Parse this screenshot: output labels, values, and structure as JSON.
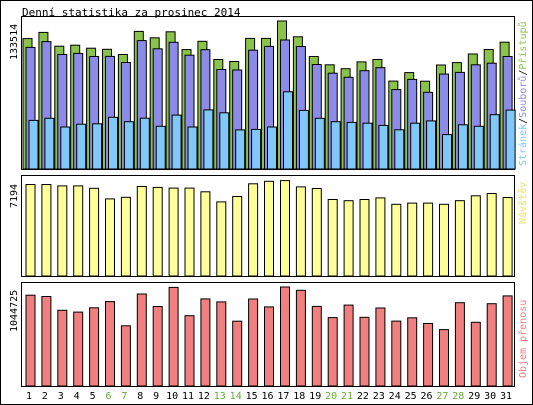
{
  "title": "Denní statistika za prosinec 2014",
  "colors": {
    "hits": "#8bc34a",
    "files": "#8c8ce8",
    "pages": "#7fc8f8",
    "visits": "#ffff99",
    "kbytes": "#f07f7f",
    "weekday_label": "#000000",
    "weekend_label": "#66aa33",
    "border": "#000000"
  },
  "chart_data": [
    {
      "type": "bar",
      "panel": "top",
      "ymax_label": "133514",
      "ymax": 133514,
      "legend_labels": [
        "Stránek",
        "Souborů",
        "Přístupů"
      ],
      "legend_separators": [
        "/",
        "/"
      ],
      "categories": [
        "1",
        "2",
        "3",
        "4",
        "5",
        "6",
        "7",
        "8",
        "9",
        "10",
        "11",
        "12",
        "13",
        "14",
        "15",
        "16",
        "17",
        "18",
        "19",
        "20",
        "21",
        "22",
        "23",
        "24",
        "25",
        "26",
        "27",
        "28",
        "29",
        "30",
        "31"
      ],
      "series": [
        {
          "name": "Přístupů",
          "color_key": "hits",
          "values": [
            117600,
            123200,
            110800,
            111700,
            109000,
            108000,
            103300,
            124100,
            118400,
            123800,
            107700,
            115200,
            98800,
            97000,
            117800,
            117800,
            133500,
            119300,
            101500,
            94000,
            90500,
            96600,
            98800,
            79300,
            87000,
            79200,
            93800,
            96000,
            103700,
            107800,
            114400
          ]
        },
        {
          "name": "Souborů",
          "color_key": "files",
          "values": [
            109700,
            114900,
            103300,
            104300,
            101500,
            101600,
            96100,
            115800,
            108400,
            114300,
            102700,
            107600,
            89800,
            89300,
            107200,
            110600,
            116400,
            110500,
            94300,
            86400,
            82700,
            88700,
            91400,
            71600,
            80800,
            69200,
            85600,
            87100,
            94000,
            95400,
            101500
          ]
        },
        {
          "name": "Stránek",
          "color_key": "pages",
          "values": [
            43800,
            45700,
            37900,
            40400,
            40800,
            46600,
            42700,
            45800,
            38500,
            48600,
            37900,
            53300,
            50700,
            35300,
            35700,
            37900,
            69600,
            52900,
            45700,
            42700,
            42000,
            41300,
            39300,
            35400,
            41300,
            43400,
            31000,
            39900,
            38500,
            49000,
            53100
          ]
        }
      ]
    },
    {
      "type": "bar",
      "panel": "middle",
      "ymax_label": "7194",
      "ymax": 7194,
      "legend_labels": [
        "Návštěv"
      ],
      "categories": [
        "1",
        "2",
        "3",
        "4",
        "5",
        "6",
        "7",
        "8",
        "9",
        "10",
        "11",
        "12",
        "13",
        "14",
        "15",
        "16",
        "17",
        "18",
        "19",
        "20",
        "21",
        "22",
        "23",
        "24",
        "25",
        "26",
        "27",
        "28",
        "29",
        "30",
        "31"
      ],
      "series": [
        {
          "name": "Návštěv",
          "color_key": "visits",
          "values": [
            6860,
            6860,
            6750,
            6750,
            6570,
            5780,
            5900,
            6710,
            6640,
            6590,
            6590,
            6310,
            5550,
            5960,
            6910,
            7100,
            7150,
            6680,
            6560,
            5730,
            5640,
            5730,
            5850,
            5370,
            5460,
            5460,
            5370,
            5640,
            6010,
            6180,
            5880
          ]
        }
      ]
    },
    {
      "type": "bar",
      "panel": "bottom",
      "ymax_label": "1044725",
      "ymax": 1044725,
      "legend_labels": [
        "Objem přenosu"
      ],
      "categories": [
        "1",
        "2",
        "3",
        "4",
        "5",
        "6",
        "7",
        "8",
        "9",
        "10",
        "11",
        "12",
        "13",
        "14",
        "15",
        "16",
        "17",
        "18",
        "19",
        "20",
        "21",
        "22",
        "23",
        "24",
        "25",
        "26",
        "27",
        "28",
        "29",
        "30",
        "31"
      ],
      "series": [
        {
          "name": "Objem přenosu",
          "color_key": "kbytes",
          "values": [
            958000,
            945000,
            799000,
            780000,
            825000,
            891000,
            635000,
            971000,
            839000,
            1040000,
            742000,
            919000,
            888000,
            684000,
            918000,
            835000,
            1045000,
            1010000,
            840000,
            722000,
            854000,
            725000,
            823000,
            685000,
            720000,
            660000,
            595000,
            879000,
            672000,
            868000,
            951000
          ]
        }
      ]
    }
  ],
  "x_labels": [
    "1",
    "2",
    "3",
    "4",
    "5",
    "6",
    "7",
    "8",
    "9",
    "10",
    "11",
    "12",
    "13",
    "14",
    "15",
    "16",
    "17",
    "18",
    "19",
    "20",
    "21",
    "22",
    "23",
    "24",
    "25",
    "26",
    "27",
    "28",
    "29",
    "30",
    "31"
  ],
  "weekend_days": [
    6,
    7,
    13,
    14,
    20,
    21,
    27,
    28
  ]
}
